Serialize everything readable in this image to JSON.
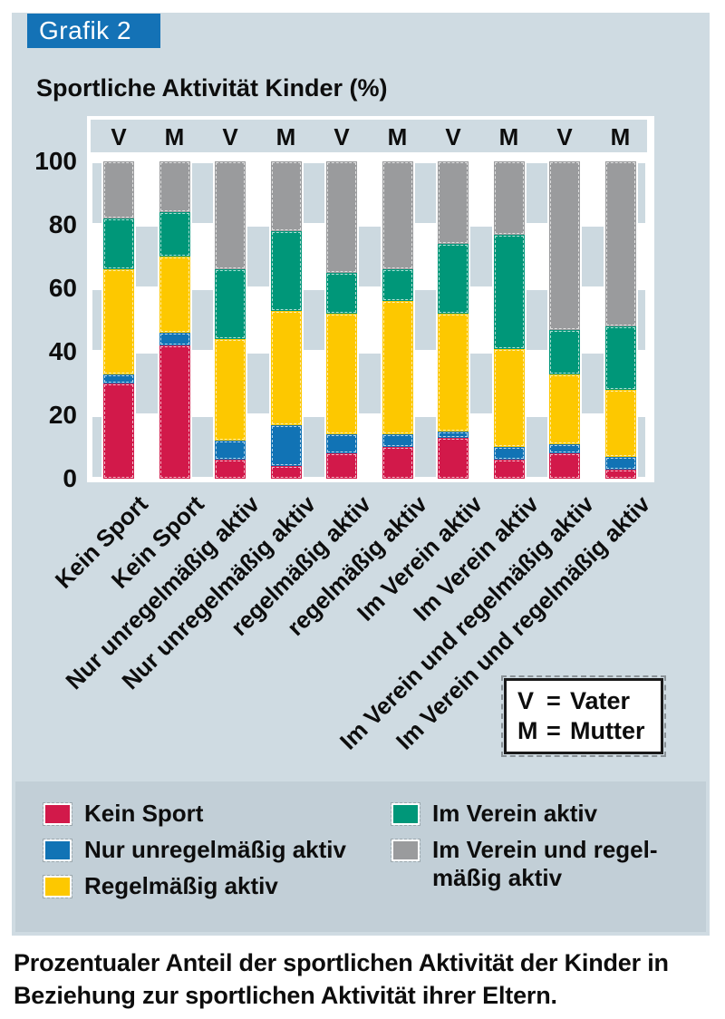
{
  "tab_label": "Grafik 2",
  "title": "Sportliche Aktivität Kinder (%)",
  "colors": {
    "tab_blue": "#1472b6",
    "panel_bg": "#cfdbe2",
    "legend_band_bg": "#c2cfd7",
    "kein_sport_red": "#d2194a",
    "unregelmaessig_blue": "#1173b5",
    "regelmaessig_yellow": "#fdc800",
    "verein_green": "#009779",
    "verein_regelmaessig_gray": "#9a9b9d"
  },
  "chart_data": {
    "type": "bar",
    "stacked": true,
    "title": "Sportliche Aktivität Kinder (%)",
    "xlabel": "",
    "ylabel": "",
    "ylim": [
      0,
      100
    ],
    "yticks": [
      0,
      20,
      40,
      60,
      80,
      100
    ],
    "grid": false,
    "legend_position": "bottom",
    "bar_group_labels": [
      "V",
      "M",
      "V",
      "M",
      "V",
      "M",
      "V",
      "M",
      "V",
      "M"
    ],
    "categories": [
      "Kein Sport",
      "Kein Sport",
      "Nur unregelmäßig aktiv",
      "Nur unregelmäßig aktiv",
      "regelmäßig aktiv",
      "regelmäßig aktiv",
      "Im Verein aktiv",
      "Im Verein aktiv",
      "Im Verein und regelmäßig aktiv",
      "Im Verein und regelmäßig aktiv"
    ],
    "series": [
      {
        "name": "Kein Sport",
        "color": "#d2194a",
        "values": [
          30,
          42,
          6,
          4,
          8,
          10,
          13,
          6,
          8,
          3
        ]
      },
      {
        "name": "Nur unregelmäßig aktiv",
        "color": "#1173b5",
        "values": [
          3,
          4,
          6,
          13,
          6,
          4,
          2,
          4,
          3,
          4
        ]
      },
      {
        "name": "Regelmäßig aktiv",
        "color": "#fdc800",
        "values": [
          33,
          24,
          32,
          36,
          38,
          42,
          37,
          31,
          22,
          21
        ]
      },
      {
        "name": "Im Verein aktiv",
        "color": "#009779",
        "values": [
          16,
          14,
          22,
          25,
          13,
          10,
          22,
          36,
          14,
          20
        ]
      },
      {
        "name": "Im Verein und regelmäßig aktiv",
        "color": "#9a9b9d",
        "values": [
          18,
          16,
          34,
          22,
          35,
          34,
          26,
          23,
          53,
          52
        ]
      }
    ]
  },
  "vm_key": {
    "rows": [
      {
        "symbol": "V",
        "eq": "=",
        "name": "Vater"
      },
      {
        "symbol": "M",
        "eq": "=",
        "name": "Mutter"
      }
    ]
  },
  "legend": {
    "left_items": [
      {
        "color": "#d2194a",
        "lines": [
          "Kein Sport"
        ]
      },
      {
        "color": "#1173b5",
        "lines": [
          "Nur unregelmäßig aktiv"
        ]
      },
      {
        "color": "#fdc800",
        "lines": [
          "Regelmäßig aktiv"
        ]
      }
    ],
    "right_items": [
      {
        "color": "#009779",
        "lines": [
          "Im Verein aktiv"
        ]
      },
      {
        "color": "#9a9b9d",
        "lines": [
          "Im Verein und regel-",
          "mäßig aktiv"
        ]
      }
    ]
  },
  "caption": {
    "line1": "Prozentualer Anteil der sportlichen Aktivität der Kinder in",
    "line2": "Beziehung zur sportlichen Aktivität ihrer Eltern."
  }
}
